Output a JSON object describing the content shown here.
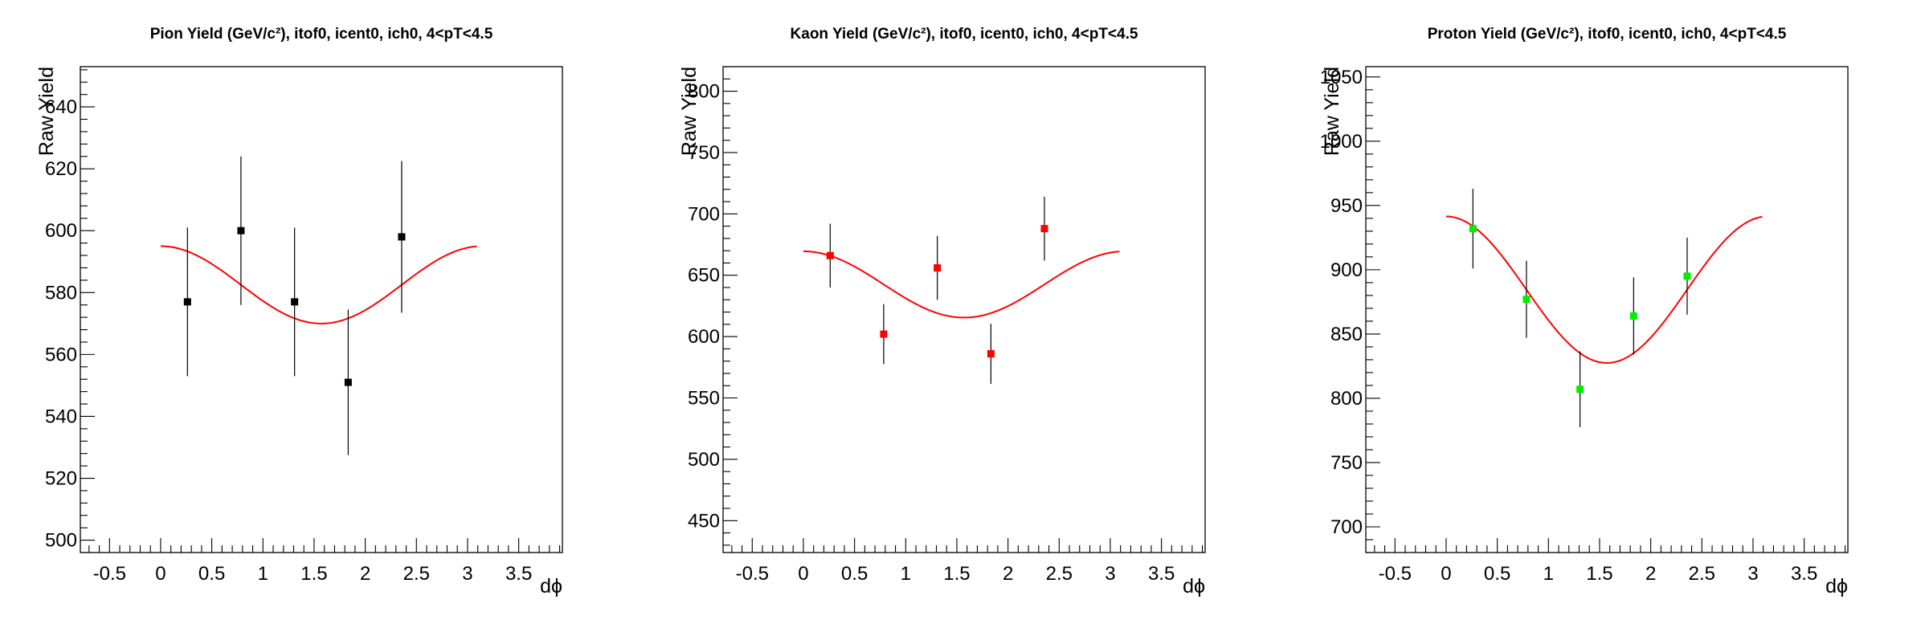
{
  "chart_data": [
    {
      "type": "scatter",
      "title": "Pion Yield (GeV/c²), itof0, icent0, ich0, 4<pT<4.5",
      "xlabel": "dϕ",
      "ylabel": "Raw Yield",
      "xlim": [
        -0.785,
        3.927
      ],
      "ylim": [
        496,
        653
      ],
      "xticks": [
        -0.5,
        0,
        0.5,
        1,
        1.5,
        2,
        2.5,
        3,
        3.5
      ],
      "xtick_labels": [
        "-0.5",
        "0",
        "0.5",
        "1",
        "1.5",
        "2",
        "2.5",
        "3",
        "3.5"
      ],
      "yticks": [
        500,
        520,
        540,
        560,
        580,
        600,
        620,
        640
      ],
      "ytick_labels": [
        "500",
        "520",
        "540",
        "560",
        "580",
        "600",
        "620",
        "640"
      ],
      "marker_color": "#000000",
      "fit_color": "#ff0000",
      "x": [
        0.262,
        0.785,
        1.309,
        1.833,
        2.356
      ],
      "y": [
        577,
        600,
        577,
        551,
        598
      ],
      "yerr": [
        24,
        24,
        24,
        23.5,
        24.5
      ],
      "fit": {
        "function": "A + B*cos(2*dphi)",
        "A": 582.5,
        "B": 12.5,
        "range": [
          0.0,
          3.09
        ]
      }
    },
    {
      "type": "scatter",
      "title": "Kaon Yield (GeV/c²), itof0, icent0, ich0, 4<pT<4.5",
      "xlabel": "dϕ",
      "ylabel": "Raw Yield",
      "xlim": [
        -0.785,
        3.927
      ],
      "ylim": [
        424,
        820
      ],
      "xticks": [
        -0.5,
        0,
        0.5,
        1,
        1.5,
        2,
        2.5,
        3,
        3.5
      ],
      "xtick_labels": [
        "-0.5",
        "0",
        "0.5",
        "1",
        "1.5",
        "2",
        "2.5",
        "3",
        "3.5"
      ],
      "yticks": [
        450,
        500,
        550,
        600,
        650,
        700,
        750,
        800
      ],
      "ytick_labels": [
        "450",
        "500",
        "550",
        "600",
        "650",
        "700",
        "750",
        "800"
      ],
      "marker_color": "#ff0000",
      "fit_color": "#ff0000",
      "x": [
        0.262,
        0.785,
        1.309,
        1.833,
        2.356
      ],
      "y": [
        666,
        602,
        656,
        586,
        688
      ],
      "yerr": [
        26,
        24.5,
        26,
        24.5,
        26
      ],
      "fit": {
        "function": "A + B*cos(2*dphi)",
        "A": 642.5,
        "B": 27,
        "range": [
          0.0,
          3.09
        ]
      }
    },
    {
      "type": "scatter",
      "title": "Proton Yield (GeV/c²), itof0, icent0, ich0, 4<pT<4.5",
      "xlabel": "dϕ",
      "ylabel": "Raw Yield",
      "xlim": [
        -0.785,
        3.927
      ],
      "ylim": [
        680,
        1058
      ],
      "xticks": [
        -0.5,
        0,
        0.5,
        1,
        1.5,
        2,
        2.5,
        3,
        3.5
      ],
      "xtick_labels": [
        "-0.5",
        "0",
        "0.5",
        "1",
        "1.5",
        "2",
        "2.5",
        "3",
        "3.5"
      ],
      "yticks": [
        700,
        750,
        800,
        850,
        900,
        950,
        1000,
        1050
      ],
      "ytick_labels": [
        "700",
        "750",
        "800",
        "850",
        "900",
        "950",
        "1000",
        "1050"
      ],
      "marker_color": "#00ee00",
      "fit_color": "#ff0000",
      "x": [
        0.262,
        0.785,
        1.309,
        1.833,
        2.356
      ],
      "y": [
        932,
        877,
        807,
        864,
        895
      ],
      "yerr": [
        31,
        30,
        29.5,
        30,
        30
      ],
      "fit": {
        "function": "A + B*cos(2*dphi)",
        "A": 884.5,
        "B": 57,
        "range": [
          0.0,
          3.09
        ]
      }
    }
  ]
}
